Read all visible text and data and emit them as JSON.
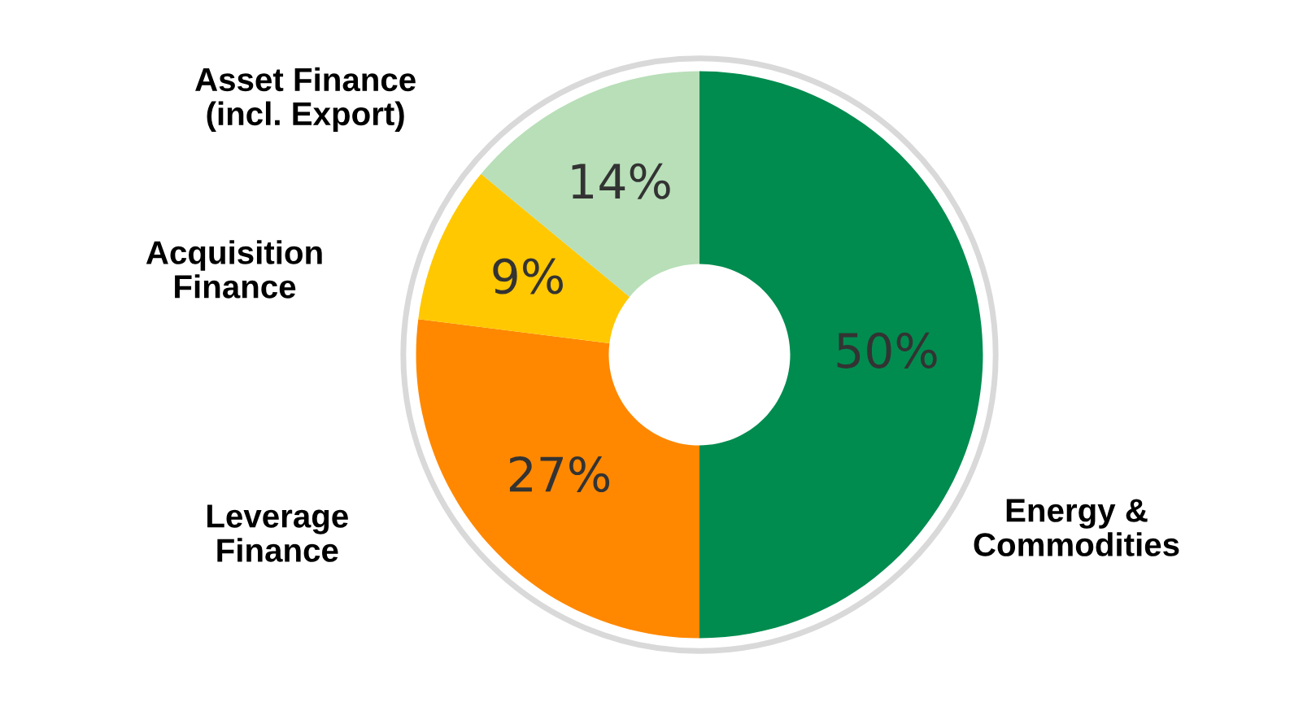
{
  "chart_data": {
    "type": "donut",
    "categories": [
      "Energy &\nCommodities",
      "Leverage\nFinance",
      "Acquisition\nFinance",
      "Asset Finance\n(incl. Export)"
    ],
    "values": [
      50,
      27,
      9,
      14
    ],
    "colors": [
      "#008c4f",
      "#ff8800",
      "#ffc800",
      "#b8dfb8"
    ],
    "value_labels": [
      "50%",
      "27%",
      "9%",
      "14%"
    ]
  }
}
